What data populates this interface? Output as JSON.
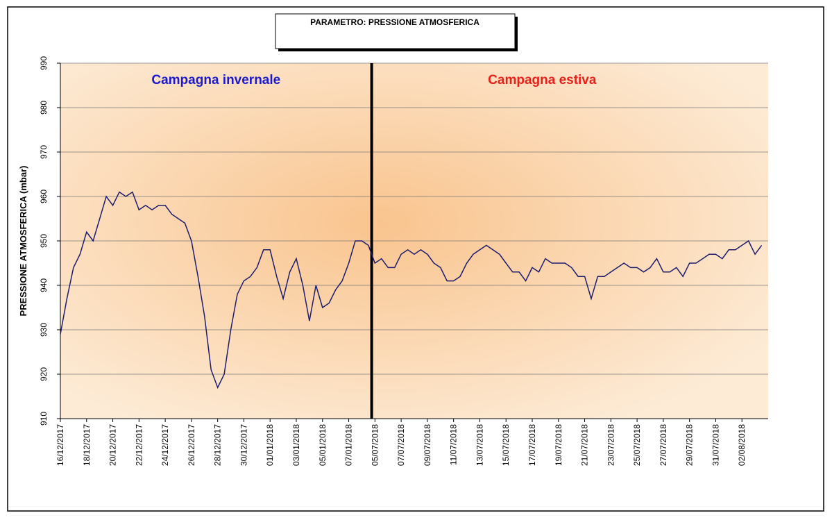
{
  "chart_data": {
    "type": "line",
    "title": "PARAMETRO: PRESSIONE ATMOSFERICA",
    "y_label": "PRESSIONE ATMOSFERICA (mbar)",
    "annotations": [
      {
        "text": "Campagna invernale",
        "color": "#1a1acc"
      },
      {
        "text": "Campagna estiva",
        "color": "#e8201a"
      }
    ],
    "categories": [
      "16/12/2017",
      null,
      null,
      null,
      "18/12/2017",
      null,
      null,
      null,
      "20/12/2017",
      null,
      null,
      null,
      "22/12/2017",
      null,
      null,
      null,
      "24/12/2017",
      null,
      null,
      null,
      "26/12/2017",
      null,
      null,
      null,
      "28/12/2017",
      null,
      null,
      null,
      "30/12/2017",
      null,
      null,
      null,
      "01/01/2018",
      null,
      null,
      null,
      "03/01/2018",
      null,
      null,
      null,
      "05/01/2018",
      null,
      null,
      null,
      "07/01/2018",
      null,
      null,
      null,
      "05/07/2018",
      null,
      null,
      null,
      "07/07/2018",
      null,
      null,
      null,
      "09/07/2018",
      null,
      null,
      null,
      "11/07/2018",
      null,
      null,
      null,
      "13/07/2018",
      null,
      null,
      null,
      "15/07/2018",
      null,
      null,
      null,
      "17/07/2018",
      null,
      null,
      null,
      "19/07/2018",
      null,
      null,
      null,
      "21/07/2018",
      null,
      null,
      null,
      "23/07/2018",
      null,
      null,
      null,
      "25/07/2018",
      null,
      null,
      null,
      "27/07/2018",
      null,
      null,
      null,
      "29/07/2018",
      null,
      null,
      null,
      "31/07/2018",
      null,
      null,
      null,
      "02/08/2018",
      null,
      null,
      null
    ],
    "series": [
      {
        "name": "Pressione atmosferica",
        "color": "#1c1c6e",
        "values": [
          929,
          937,
          944,
          947,
          952,
          950,
          955,
          960,
          958,
          961,
          960,
          961,
          957,
          958,
          957,
          958,
          958,
          956,
          955,
          954,
          950,
          942,
          933,
          921,
          917,
          920,
          930,
          938,
          941,
          942,
          944,
          948,
          948,
          942,
          937,
          943,
          946,
          940,
          932,
          940,
          935,
          936,
          939,
          941,
          945,
          950,
          950,
          949,
          945,
          946,
          944,
          944,
          947,
          948,
          947,
          948,
          947,
          945,
          944,
          941,
          941,
          942,
          945,
          947,
          948,
          949,
          948,
          947,
          945,
          943,
          943,
          941,
          944,
          943,
          946,
          945,
          945,
          945,
          944,
          942,
          942,
          937,
          942,
          942,
          943,
          944,
          945,
          944,
          944,
          943,
          944,
          946,
          943,
          943,
          944,
          942,
          945,
          945,
          946,
          947,
          947,
          946,
          948,
          948,
          949,
          950,
          947,
          949
        ]
      }
    ],
    "ylim": [
      910,
      990
    ],
    "yticks": [
      910,
      920,
      930,
      940,
      950,
      960,
      970,
      980,
      990
    ],
    "grid": true
  }
}
